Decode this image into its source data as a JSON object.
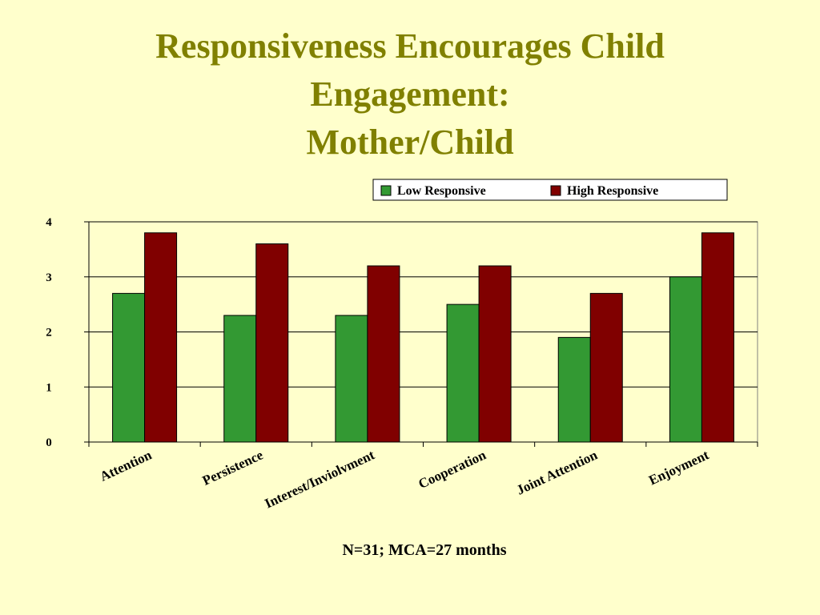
{
  "title_lines": [
    "Responsiveness Encourages Child",
    "Engagement:",
    "Mother/Child"
  ],
  "footnote": "N=31; MCA=27 months",
  "colors": {
    "background": "#FFFFCC",
    "title": "#808000",
    "low": "#339933",
    "high": "#800000"
  },
  "chart_data": {
    "type": "bar",
    "categories": [
      "Attention",
      "Persistence",
      "Interest/Inviolvment",
      "Cooperation",
      "Joint Attention",
      "Enjoyment"
    ],
    "series": [
      {
        "name": "Low Responsive",
        "values": [
          2.7,
          2.3,
          2.3,
          2.5,
          1.9,
          3.0
        ]
      },
      {
        "name": "High Responsive",
        "values": [
          3.8,
          3.6,
          3.2,
          3.2,
          2.7,
          3.8
        ]
      }
    ],
    "ylim": [
      0,
      4
    ],
    "yticks": [
      "0",
      "1",
      "2",
      "3",
      "4"
    ],
    "grid": true,
    "legend": "top-right"
  }
}
